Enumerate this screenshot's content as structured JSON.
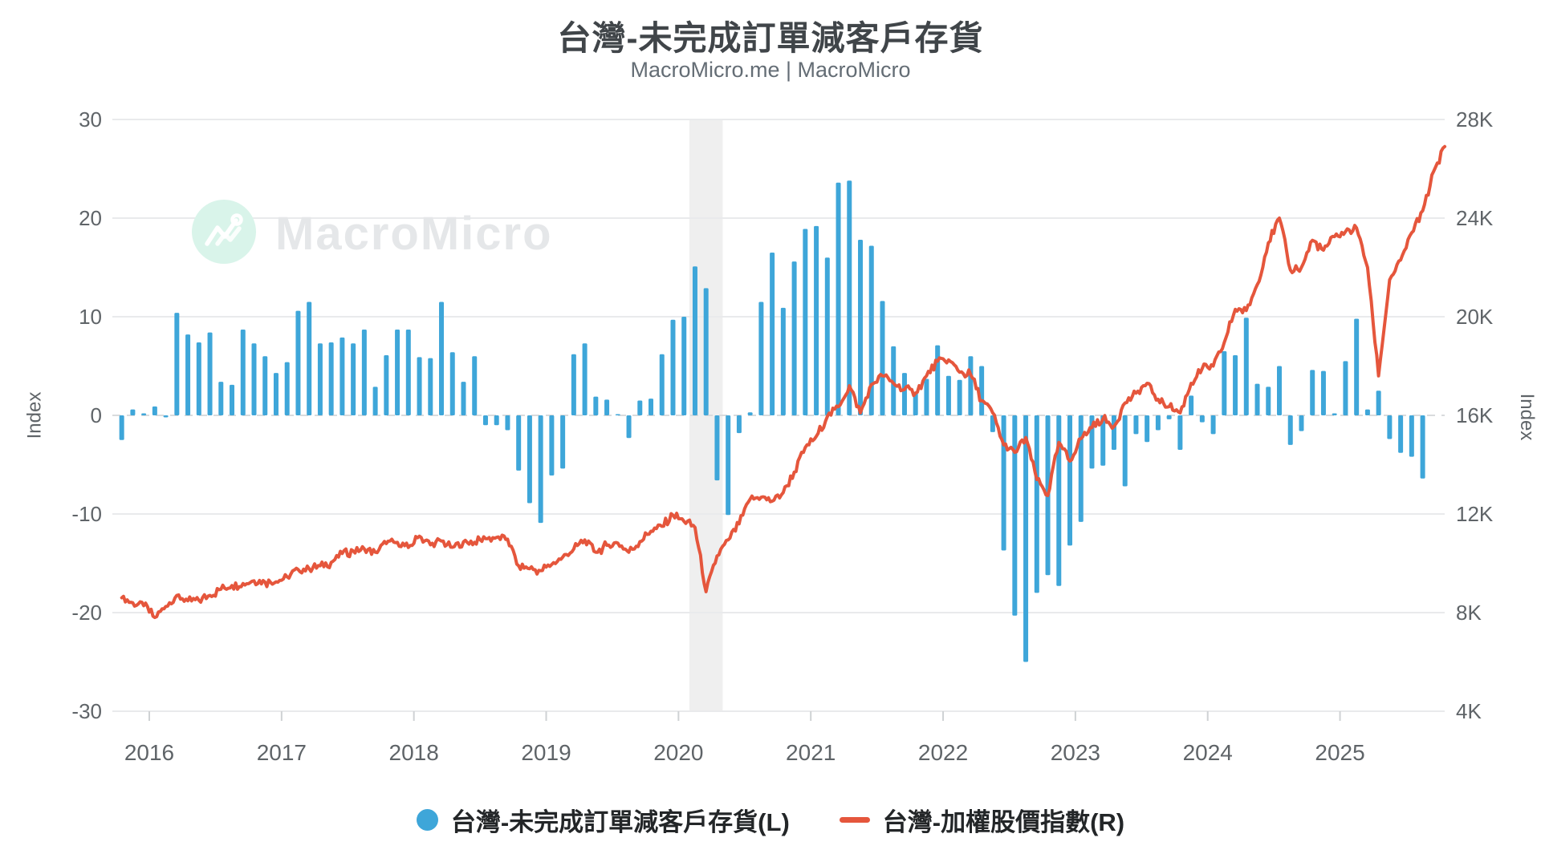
{
  "header": {
    "title": "台灣-未完成訂單減客戶存貨",
    "subtitle": "MacroMicro.me | MacroMicro"
  },
  "watermark": {
    "brand": "MacroMicro"
  },
  "legend": [
    {
      "label": "台灣-未完成訂單減客戶存貨(L)",
      "marker": "circle",
      "color": "#3ea6d9"
    },
    {
      "label": "台灣-加權股價指數(R)",
      "marker": "line",
      "color": "#e5563c"
    }
  ],
  "chart_data": {
    "type": "combo",
    "start_month": "2015-10",
    "series": [
      {
        "name": "台灣-未完成訂單減客戶存貨(L)",
        "type": "bar",
        "axis": "left",
        "color": "#3ea6d9",
        "values": [
          -2.5,
          0.6,
          0.2,
          0.9,
          -0.2,
          10.4,
          8.2,
          7.4,
          8.4,
          3.4,
          3.1,
          8.7,
          7.3,
          6.0,
          4.3,
          5.4,
          10.6,
          11.5,
          7.3,
          7.4,
          7.9,
          7.3,
          8.7,
          2.9,
          6.1,
          8.7,
          8.7,
          5.9,
          5.8,
          11.5,
          6.4,
          3.4,
          6.0,
          -1.0,
          -1.0,
          -1.5,
          -5.6,
          -8.9,
          -10.9,
          -6.1,
          -5.4,
          6.2,
          7.3,
          1.9,
          1.6,
          0.1,
          -2.3,
          1.5,
          1.7,
          6.2,
          9.7,
          10.0,
          15.1,
          12.9,
          -6.6,
          -10.1,
          -1.8,
          0.3,
          11.5,
          16.5,
          10.9,
          15.6,
          18.9,
          19.2,
          16.0,
          23.6,
          23.8,
          17.8,
          17.2,
          11.6,
          7.0,
          4.3,
          2.4,
          3.7,
          7.1,
          4.0,
          3.6,
          6.0,
          5.0,
          -1.7,
          -13.7,
          -20.3,
          -25.0,
          -18.0,
          -16.2,
          -17.3,
          -13.2,
          -10.8,
          -5.4,
          -5.1,
          -3.5,
          -7.2,
          -1.9,
          -2.7,
          -1.5,
          -0.4,
          -3.5,
          2.0,
          -0.7,
          -1.9,
          6.5,
          6.1,
          9.9,
          3.2,
          2.9,
          5.0,
          -3.0,
          -1.6,
          4.6,
          4.5,
          0.2,
          5.5,
          9.8,
          0.6,
          2.5,
          -2.4,
          -3.8,
          -4.2,
          -6.4
        ]
      },
      {
        "name": "台灣-加權股價指數(R)",
        "type": "line",
        "axis": "right",
        "color": "#e5563c",
        "monthly_anchors": [
          8600,
          8400,
          8280,
          7800,
          8250,
          8700,
          8480,
          8500,
          8700,
          8950,
          9100,
          9180,
          9290,
          9240,
          9250,
          9450,
          9750,
          9780,
          9900,
          10040,
          10400,
          10500,
          10585,
          10450,
          10800,
          10850,
          10640,
          11100,
          10750,
          10900,
          10650,
          10870,
          10850,
          11000,
          11050,
          10980,
          9900,
          9780,
          9700,
          9950,
          10250,
          10580,
          10950,
          10450,
          10730,
          10820,
          10450,
          10880,
          11300,
          11500,
          11950,
          11700,
          11450,
          8850,
          10300,
          10950,
          11600,
          12600,
          12680,
          12520,
          12870,
          13700,
          14700,
          15150,
          15950,
          16350,
          17200,
          16100,
          17250,
          17600,
          17300,
          17050,
          16900,
          17600,
          18200,
          18250,
          17750,
          17650,
          16600,
          16100,
          14800,
          14500,
          15100,
          13400,
          12750,
          14900,
          14150,
          15050,
          15500,
          15850,
          15550,
          16500,
          16900,
          17300,
          16650,
          16350,
          16100,
          17300,
          17900,
          18000,
          18950,
          20300,
          20250,
          21300,
          23000,
          24000,
          21900,
          22000,
          23100,
          22700,
          23250,
          23450,
          23600,
          22000,
          17600,
          21500,
          22300,
          23400,
          24300,
          25900,
          26900
        ]
      }
    ],
    "left_axis": {
      "label": "Index",
      "ticks": [
        30,
        20,
        10,
        0,
        -10,
        -20,
        -30
      ],
      "min": -30,
      "max": 30
    },
    "right_axis": {
      "label": "Index",
      "ticks": [
        "28K",
        "24K",
        "20K",
        "16K",
        "12K",
        "8K",
        "4K"
      ],
      "min": 4000,
      "max": 28000
    },
    "x_axis": {
      "years": [
        "2016",
        "2017",
        "2018",
        "2019",
        "2020",
        "2021",
        "2022",
        "2023",
        "2024",
        "2025"
      ]
    },
    "shaded_band": {
      "from": "2020-02",
      "to": "2020-04",
      "color": "#efefef"
    },
    "grid": true,
    "legend_position": "bottom"
  }
}
